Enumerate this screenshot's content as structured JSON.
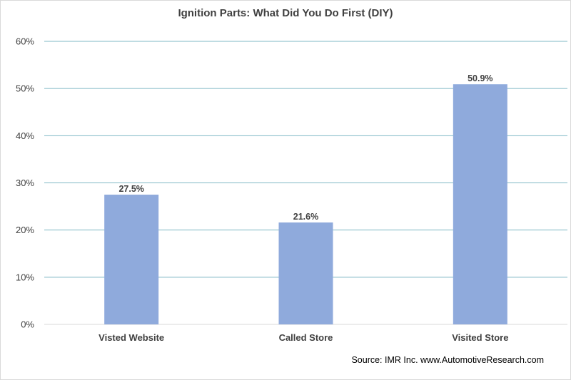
{
  "chart_data": {
    "type": "bar",
    "title": "Ignition Parts: What Did You Do First (DIY)",
    "categories": [
      "Visted Website",
      "Called Store",
      "Visited Store"
    ],
    "values": [
      27.5,
      21.6,
      50.9
    ],
    "value_labels": [
      "27.5%",
      "21.6%",
      "50.9%"
    ],
    "xlabel": "",
    "ylabel": "",
    "ylim": [
      0,
      60
    ],
    "yticks": [
      0,
      10,
      20,
      30,
      40,
      50,
      60
    ],
    "ytick_labels": [
      "0%",
      "10%",
      "20%",
      "30%",
      "40%",
      "50%",
      "60%"
    ],
    "grid": true,
    "bar_color": "#8FAADC",
    "grid_color": "#7FB8C4",
    "legend": "none"
  },
  "source": "Source: IMR Inc. www.AutomotiveResearch.com"
}
